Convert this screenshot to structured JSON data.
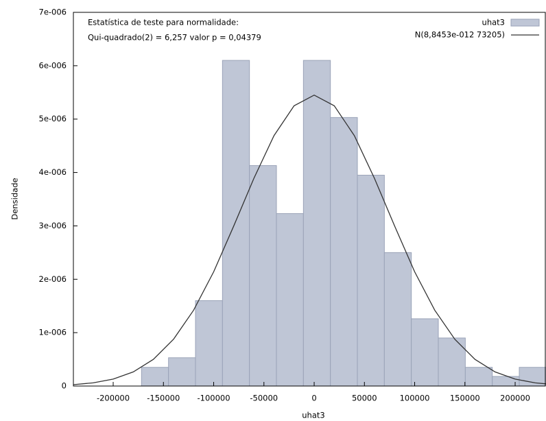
{
  "chart_data": {
    "type": "histogram",
    "name": "uhat3",
    "color": "#bfc6d6",
    "xlabel": "uhat3",
    "ylabel": "Densidade",
    "annotations": [
      "Estatística de teste para normalidade:",
      "Qui-quadrado(2) = 6,257 valor p = 0,04379"
    ],
    "bins": [
      -171800,
      -144950,
      -118100,
      -91250,
      -64400,
      -37550,
      -10700,
      16150,
      43000,
      69850,
      96700,
      123550,
      150400,
      177250,
      204100,
      230950
    ],
    "values": [
      3.5e-07,
      5.3e-07,
      1.6e-06,
      6.1e-06,
      4.13e-06,
      3.23e-06,
      6.1e-06,
      5.03e-06,
      3.95e-06,
      2.5e-06,
      1.26e-06,
      9e-07,
      3.5e-07,
      1.8e-07,
      3.5e-07
    ],
    "curve": {
      "type": "line",
      "name": "N(8,8453e-012 73205)",
      "color": "#333333",
      "x": [
        -240000,
        -220000,
        -200000,
        -180000,
        -160000,
        -140000,
        -120000,
        -100000,
        -80000,
        -60000,
        -40000,
        -20000,
        0,
        20000,
        40000,
        60000,
        80000,
        100000,
        120000,
        140000,
        160000,
        180000,
        200000,
        220000,
        240000
      ],
      "values": [
        2.53e-08,
        5.96e-08,
        1.3e-07,
        2.65e-07,
        5e-07,
        8.75e-07,
        1.42e-06,
        2.14e-06,
        3e-06,
        3.89e-06,
        4.69e-06,
        5.25e-06,
        5.45e-06,
        5.25e-06,
        4.69e-06,
        3.89e-06,
        3e-06,
        2.14e-06,
        1.42e-06,
        8.75e-07,
        5e-07,
        2.65e-07,
        1.3e-07,
        5.96e-08,
        2.53e-08
      ]
    },
    "xlim": [
      -239600,
      230700
    ],
    "ylim": [
      0,
      7e-06
    ],
    "xticks": [
      -200000,
      -150000,
      -100000,
      -50000,
      0,
      50000,
      100000,
      150000,
      200000
    ],
    "yticks": [
      0,
      {
        "value": 1e-06,
        "label": "1e-006"
      },
      {
        "value": 2e-06,
        "label": "2e-006"
      },
      {
        "value": 3e-06,
        "label": "3e-006"
      },
      {
        "value": 4e-06,
        "label": "4e-006"
      },
      {
        "value": 5e-06,
        "label": "5e-006"
      },
      {
        "value": 6e-06,
        "label": "6e-006"
      },
      {
        "value": 7e-06,
        "label": "7e-006"
      }
    ],
    "legend": "upper right"
  }
}
